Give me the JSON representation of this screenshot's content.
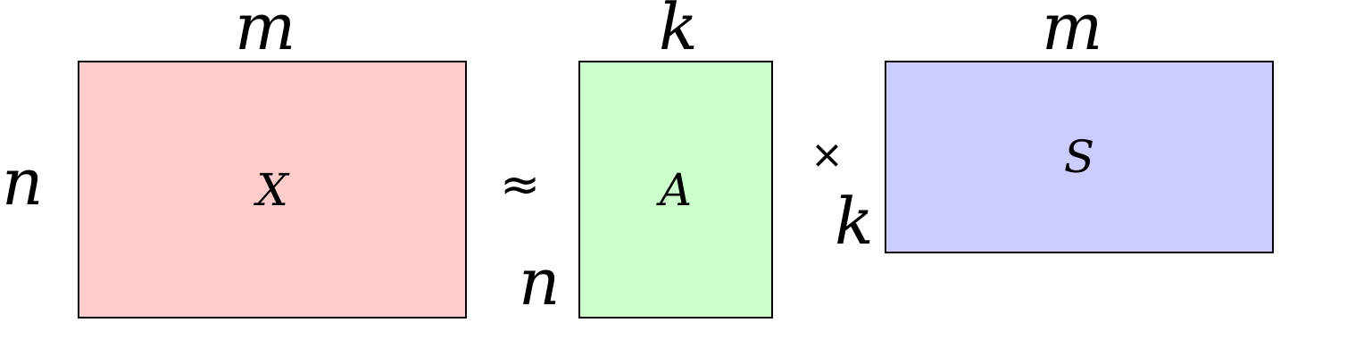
{
  "matrix_x": {
    "name": "X",
    "rows": "n",
    "cols": "m",
    "fill": "#FFCCCC"
  },
  "matrix_a": {
    "name": "A",
    "rows": "n",
    "cols": "k",
    "fill": "#CCFFCC"
  },
  "matrix_s": {
    "name": "S",
    "rows": "k",
    "cols": "m",
    "fill": "#CCCCFF"
  },
  "approx_symbol": "≈",
  "times_symbol": "×"
}
